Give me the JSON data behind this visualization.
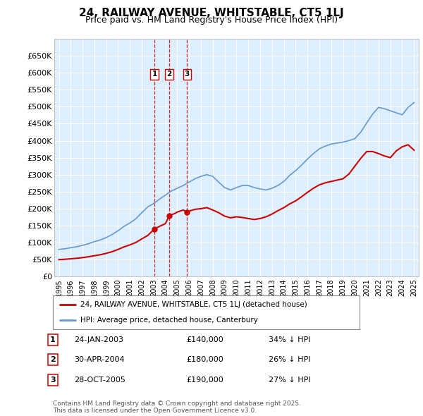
{
  "title": "24, RAILWAY AVENUE, WHITSTABLE, CT5 1LJ",
  "subtitle": "Price paid vs. HM Land Registry's House Price Index (HPI)",
  "legend_line1": "24, RAILWAY AVENUE, WHITSTABLE, CT5 1LJ (detached house)",
  "legend_line2": "HPI: Average price, detached house, Canterbury",
  "footer": "Contains HM Land Registry data © Crown copyright and database right 2025.\nThis data is licensed under the Open Government Licence v3.0.",
  "transactions": [
    {
      "num": 1,
      "date": "24-JAN-2003",
      "price": "£140,000",
      "hpi": "34% ↓ HPI",
      "year": 2003.07,
      "price_val": 140000
    },
    {
      "num": 2,
      "date": "30-APR-2004",
      "price": "£180,000",
      "hpi": "26% ↓ HPI",
      "year": 2004.33,
      "price_val": 180000
    },
    {
      "num": 3,
      "date": "28-OCT-2005",
      "price": "£190,000",
      "hpi": "27% ↓ HPI",
      "year": 2005.83,
      "price_val": 190000
    }
  ],
  "red_color": "#cc0000",
  "blue_color": "#6699cc",
  "bg_color": "#ddeeff",
  "grid_color": "#ffffff",
  "ylim": [
    0,
    700000
  ],
  "yticks": [
    0,
    50000,
    100000,
    150000,
    200000,
    250000,
    300000,
    350000,
    400000,
    450000,
    500000,
    550000,
    600000,
    650000
  ],
  "xlim_start": 1994.6,
  "xlim_end": 2025.4,
  "years_hpi": [
    1995.0,
    1995.5,
    1996.0,
    1996.5,
    1997.0,
    1997.5,
    1998.0,
    1998.5,
    1999.0,
    1999.5,
    2000.0,
    2000.5,
    2001.0,
    2001.5,
    2002.0,
    2002.5,
    2003.0,
    2003.5,
    2004.0,
    2004.5,
    2005.0,
    2005.5,
    2006.0,
    2006.5,
    2007.0,
    2007.5,
    2008.0,
    2008.5,
    2009.0,
    2009.5,
    2010.0,
    2010.5,
    2011.0,
    2011.5,
    2012.0,
    2012.5,
    2013.0,
    2013.5,
    2014.0,
    2014.5,
    2015.0,
    2015.5,
    2016.0,
    2016.5,
    2017.0,
    2017.5,
    2018.0,
    2018.5,
    2019.0,
    2019.5,
    2020.0,
    2020.5,
    2021.0,
    2021.5,
    2022.0,
    2022.5,
    2023.0,
    2023.5,
    2024.0,
    2024.5,
    2025.0
  ],
  "hpi_values": [
    80000,
    82000,
    85000,
    88000,
    92000,
    97000,
    103000,
    108000,
    115000,
    124000,
    135000,
    148000,
    158000,
    170000,
    188000,
    205000,
    215000,
    228000,
    240000,
    252000,
    260000,
    268000,
    278000,
    288000,
    295000,
    300000,
    295000,
    278000,
    262000,
    255000,
    262000,
    268000,
    268000,
    262000,
    258000,
    255000,
    260000,
    268000,
    280000,
    298000,
    312000,
    328000,
    346000,
    362000,
    376000,
    384000,
    390000,
    393000,
    396000,
    400000,
    406000,
    425000,
    452000,
    478000,
    498000,
    494000,
    488000,
    482000,
    476000,
    498000,
    512000
  ],
  "years_red": [
    1995.0,
    1995.5,
    1996.0,
    1996.5,
    1997.0,
    1997.5,
    1998.0,
    1998.5,
    1999.0,
    1999.5,
    2000.0,
    2000.5,
    2001.0,
    2001.5,
    2002.0,
    2002.5,
    2003.07,
    2003.5,
    2004.0,
    2004.33,
    2004.8,
    2005.0,
    2005.5,
    2005.83,
    2006.0,
    2006.5,
    2007.0,
    2007.5,
    2008.0,
    2008.5,
    2009.0,
    2009.5,
    2010.0,
    2010.5,
    2011.0,
    2011.5,
    2012.0,
    2012.5,
    2013.0,
    2013.5,
    2014.0,
    2014.5,
    2015.0,
    2015.5,
    2016.0,
    2016.5,
    2017.0,
    2017.5,
    2018.0,
    2018.5,
    2019.0,
    2019.5,
    2020.0,
    2020.5,
    2021.0,
    2021.5,
    2022.0,
    2022.5,
    2023.0,
    2023.5,
    2024.0,
    2024.5,
    2025.0
  ],
  "red_values": [
    50000,
    51000,
    52500,
    54000,
    56000,
    58500,
    61500,
    64500,
    68500,
    73500,
    80000,
    87500,
    93500,
    100500,
    111000,
    121000,
    140000,
    148000,
    156000,
    180000,
    186000,
    190000,
    196000,
    190000,
    193000,
    198000,
    200000,
    203000,
    196000,
    188000,
    178000,
    173000,
    176000,
    174000,
    171000,
    168000,
    171000,
    176000,
    184000,
    194000,
    203000,
    214000,
    223000,
    235000,
    248000,
    260000,
    270000,
    276000,
    280000,
    284000,
    288000,
    302000,
    325000,
    348000,
    368000,
    368000,
    362000,
    355000,
    350000,
    370000,
    382000,
    388000,
    372000
  ]
}
